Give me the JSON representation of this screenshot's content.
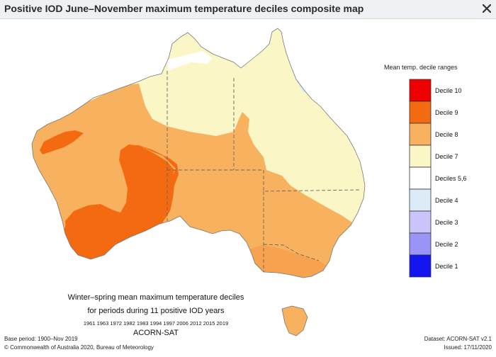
{
  "window": {
    "title": "Positive IOD June–November maximum temperature deciles composite map"
  },
  "legend": {
    "title": "Mean temp. decile ranges",
    "items": [
      {
        "label": "Decile 10",
        "color": "#ee0000"
      },
      {
        "label": "Decile 9",
        "color": "#f46a10"
      },
      {
        "label": "Decile 8",
        "color": "#f8b15e"
      },
      {
        "label": "Decile 7",
        "color": "#fbf6c6"
      },
      {
        "label": "Deciles 5,6",
        "color": "#ffffff"
      },
      {
        "label": "Decile 4",
        "color": "#dbecf8"
      },
      {
        "label": "Decile 3",
        "color": "#c9c4fa"
      },
      {
        "label": "Decile 2",
        "color": "#9a94f6"
      },
      {
        "label": "Decile 1",
        "color": "#1414ee"
      }
    ]
  },
  "caption": {
    "line1": "Winter–spring mean maximum temperature deciles",
    "line2": "for periods during 11 positive IOD years",
    "years": "1961 1963 1972 1982 1983 1994 1997 2006 2012 2015 2019",
    "dataset_name": "ACORN-SAT"
  },
  "footer": {
    "base_period": "Base period: 1900–Nov 2019",
    "copyright": "© Commonwealth of Australia 2020, Bureau of Meteorology",
    "dataset": "Dataset: ACORN-SAT v2.1",
    "issued": "Issued: 17/11/2020"
  },
  "icons": {
    "close": "close-icon"
  }
}
